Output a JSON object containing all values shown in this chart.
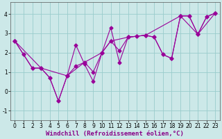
{
  "line_zigzag_x": [
    0,
    1,
    2,
    3,
    4,
    5,
    6,
    7,
    8,
    9,
    10,
    11,
    12,
    13,
    14,
    15,
    16,
    17,
    18,
    19,
    20,
    21,
    22,
    23
  ],
  "line_zigzag_y": [
    2.6,
    1.9,
    1.2,
    1.2,
    0.7,
    -0.5,
    0.8,
    2.4,
    1.4,
    0.5,
    2.0,
    3.3,
    1.5,
    2.8,
    2.85,
    2.9,
    2.8,
    1.9,
    1.7,
    3.9,
    3.9,
    2.95,
    3.85,
    4.05
  ],
  "line_smooth_x": [
    0,
    1,
    2,
    3,
    4,
    5,
    6,
    7,
    8,
    9,
    10,
    11,
    12,
    13,
    14,
    15,
    16,
    17,
    18,
    19,
    20,
    21,
    22,
    23
  ],
  "line_smooth_y": [
    2.6,
    1.9,
    1.2,
    1.2,
    0.7,
    -0.5,
    0.8,
    1.3,
    1.5,
    1.0,
    2.0,
    2.6,
    2.1,
    2.8,
    2.85,
    2.9,
    2.8,
    1.9,
    1.7,
    3.9,
    3.9,
    2.95,
    3.85,
    4.05
  ],
  "line_trend_x": [
    0,
    3,
    6,
    8,
    10,
    11,
    13,
    15,
    19,
    21,
    23
  ],
  "line_trend_y": [
    2.6,
    1.2,
    0.8,
    1.5,
    2.0,
    2.6,
    2.8,
    2.9,
    3.9,
    2.95,
    4.05
  ],
  "color": "#990099",
  "bg_color": "#cce8e8",
  "grid_color": "#99cccc",
  "xlabel": "Windchill (Refroidissement éolien,°C)",
  "xlim": [
    -0.5,
    23.5
  ],
  "ylim": [
    -1.5,
    4.6
  ],
  "yticks": [
    -1,
    0,
    1,
    2,
    3,
    4
  ],
  "xticks": [
    0,
    1,
    2,
    3,
    4,
    5,
    6,
    7,
    8,
    9,
    10,
    11,
    12,
    13,
    14,
    15,
    16,
    17,
    18,
    19,
    20,
    21,
    22,
    23
  ],
  "tick_fontsize": 5.5,
  "xlabel_fontsize": 6.5
}
